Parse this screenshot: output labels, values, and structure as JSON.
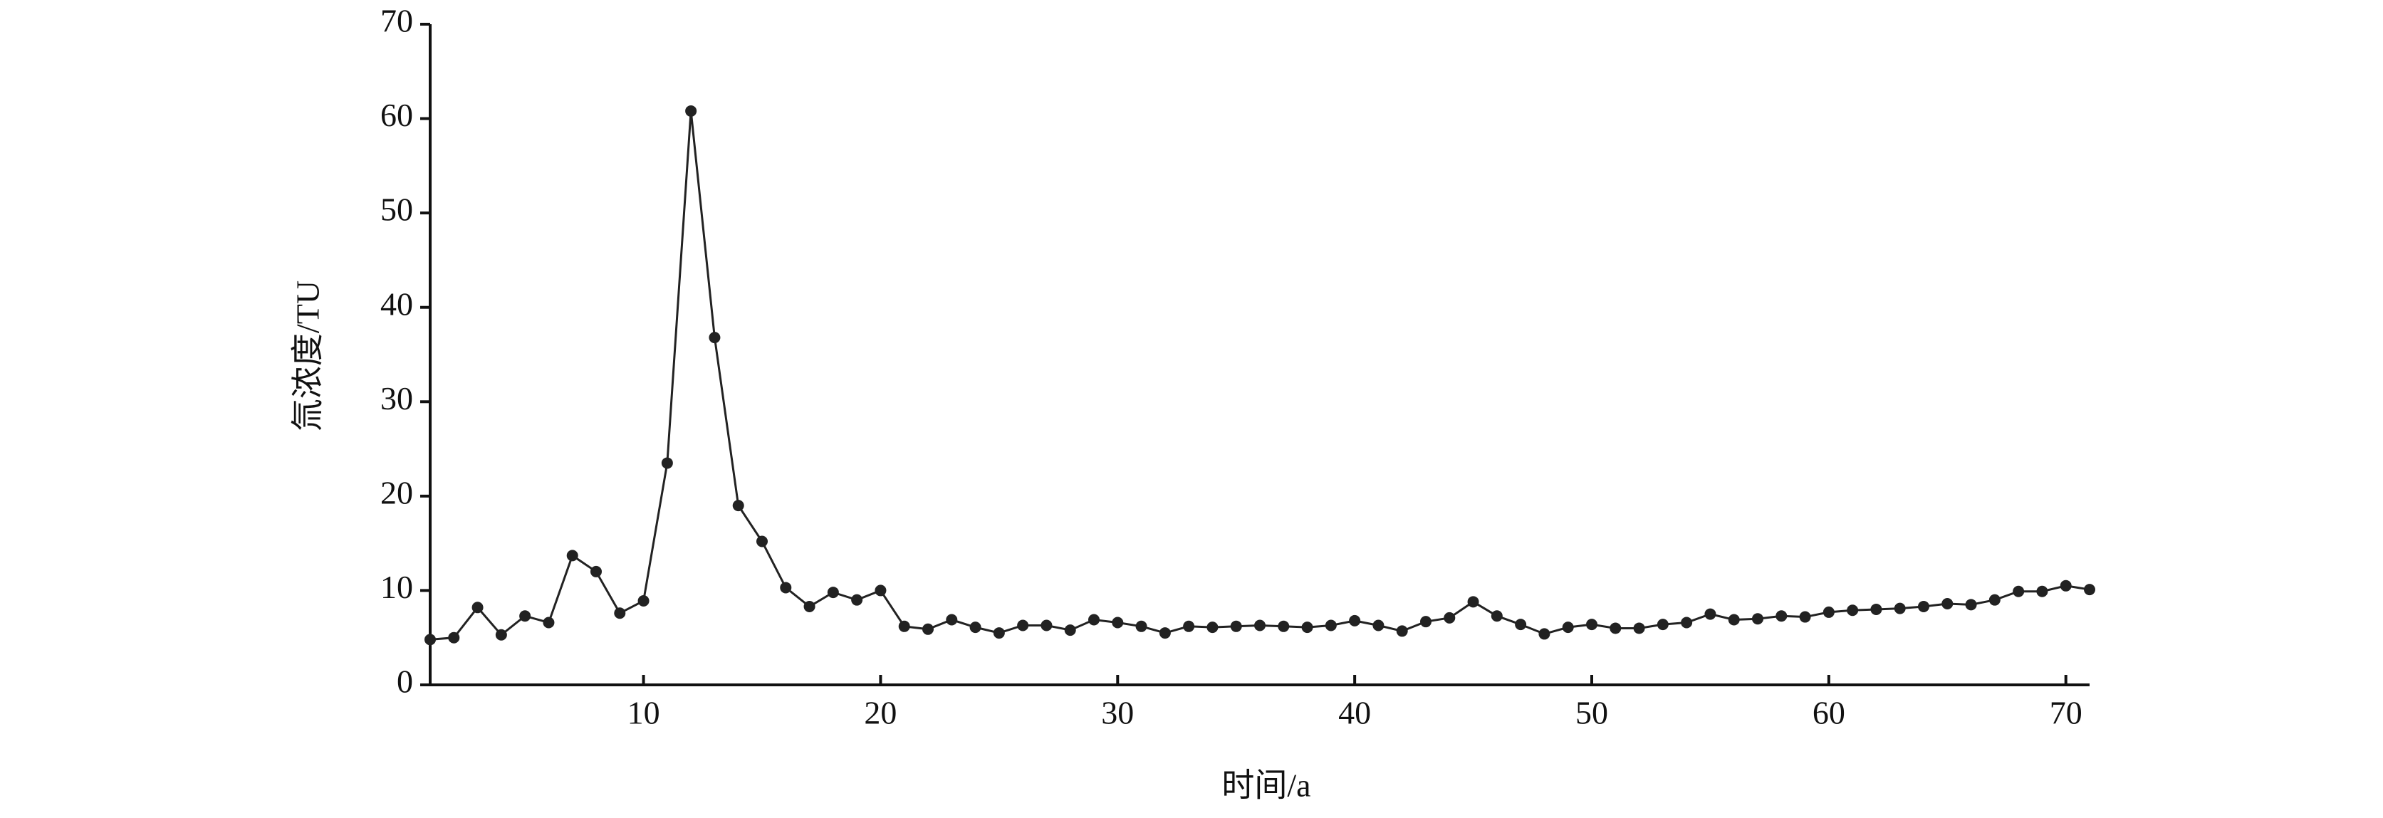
{
  "chart_data": {
    "type": "line",
    "x_label": "时间/a",
    "y_label": "氚浓度/TU",
    "x": [
      1,
      2,
      3,
      4,
      5,
      6,
      7,
      8,
      9,
      10,
      11,
      12,
      13,
      14,
      15,
      16,
      17,
      18,
      19,
      20,
      21,
      22,
      23,
      24,
      25,
      26,
      27,
      28,
      29,
      30,
      31,
      32,
      33,
      34,
      35,
      36,
      37,
      38,
      39,
      40,
      41,
      42,
      43,
      44,
      45,
      46,
      47,
      48,
      49,
      50,
      51,
      52,
      53,
      54,
      55,
      56,
      57,
      58,
      59,
      60,
      61,
      62,
      63,
      64,
      65,
      66,
      67,
      68,
      69,
      70,
      71
    ],
    "series": [
      {
        "color": "#222222",
        "values": [
          4.8,
          5.0,
          8.2,
          5.3,
          7.3,
          6.6,
          13.7,
          12.0,
          7.6,
          8.9,
          23.5,
          60.8,
          36.8,
          19.0,
          15.2,
          10.3,
          8.3,
          9.8,
          9.0,
          10.0,
          6.2,
          5.9,
          6.9,
          6.1,
          5.5,
          6.3,
          6.3,
          5.8,
          6.9,
          6.6,
          6.2,
          5.5,
          6.2,
          6.1,
          6.2,
          6.3,
          6.2,
          6.1,
          6.3,
          6.8,
          6.3,
          5.7,
          6.7,
          7.1,
          8.8,
          7.3,
          6.4,
          5.4,
          6.1,
          6.4,
          6.0,
          6.0,
          6.4,
          6.6,
          7.5,
          6.9,
          7.0,
          7.3,
          7.2,
          7.7,
          7.9,
          8.0,
          8.1,
          8.3,
          8.6,
          8.5,
          9.0,
          9.9,
          9.9,
          10.5,
          10.1
        ]
      }
    ],
    "xlim": [
      1,
      71
    ],
    "xticks": [
      10,
      20,
      30,
      40,
      50,
      60,
      70
    ],
    "ylim": [
      0,
      70
    ],
    "yticks": [
      0,
      10,
      20,
      30,
      40,
      50,
      60,
      70
    ]
  }
}
